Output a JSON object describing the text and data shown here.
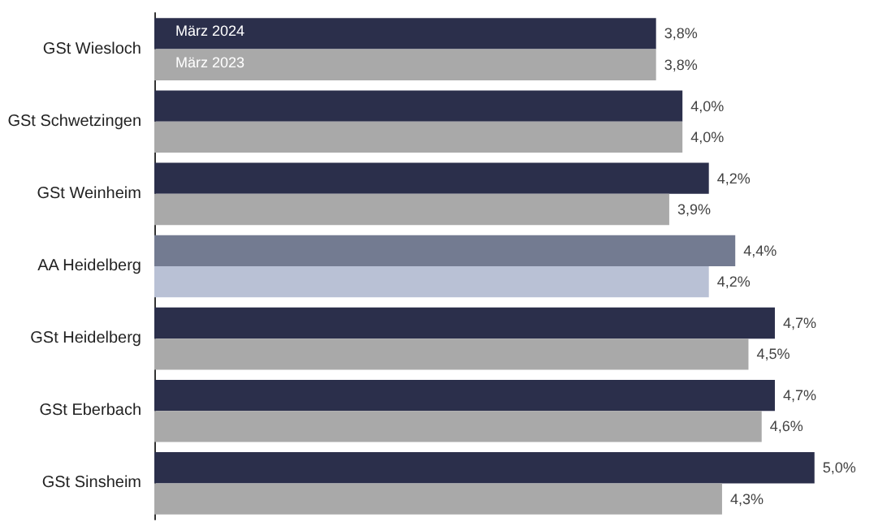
{
  "chart_data": {
    "type": "bar",
    "orientation": "horizontal",
    "categories": [
      "GSt Wiesloch",
      "GSt Schwetzingen",
      "GSt Weinheim",
      "AA Heidelberg",
      "GSt Heidelberg",
      "GSt Eberbach",
      "GSt Sinsheim"
    ],
    "series": [
      {
        "name": "März 2024",
        "colors": [
          "#2b2f4b",
          "#2b2f4b",
          "#2b2f4b",
          "#737b91",
          "#2b2f4b",
          "#2b2f4b",
          "#2b2f4b"
        ],
        "values": [
          3.8,
          4.0,
          4.2,
          4.4,
          4.7,
          4.7,
          5.0
        ],
        "value_labels": [
          "3,8%",
          "4,0%",
          "4,2%",
          "4,4%",
          "4,7%",
          "4,7%",
          "5,0%"
        ]
      },
      {
        "name": "März 2023",
        "colors": [
          "#a9a9a9",
          "#a9a9a9",
          "#a9a9a9",
          "#b9c1d5",
          "#a9a9a9",
          "#a9a9a9",
          "#a9a9a9"
        ],
        "values": [
          3.8,
          4.0,
          3.9,
          4.2,
          4.5,
          4.6,
          4.3
        ],
        "value_labels": [
          "3,8%",
          "4,0%",
          "3,9%",
          "4,2%",
          "4,5%",
          "4,6%",
          "4,3%"
        ]
      }
    ],
    "legend": false
  }
}
